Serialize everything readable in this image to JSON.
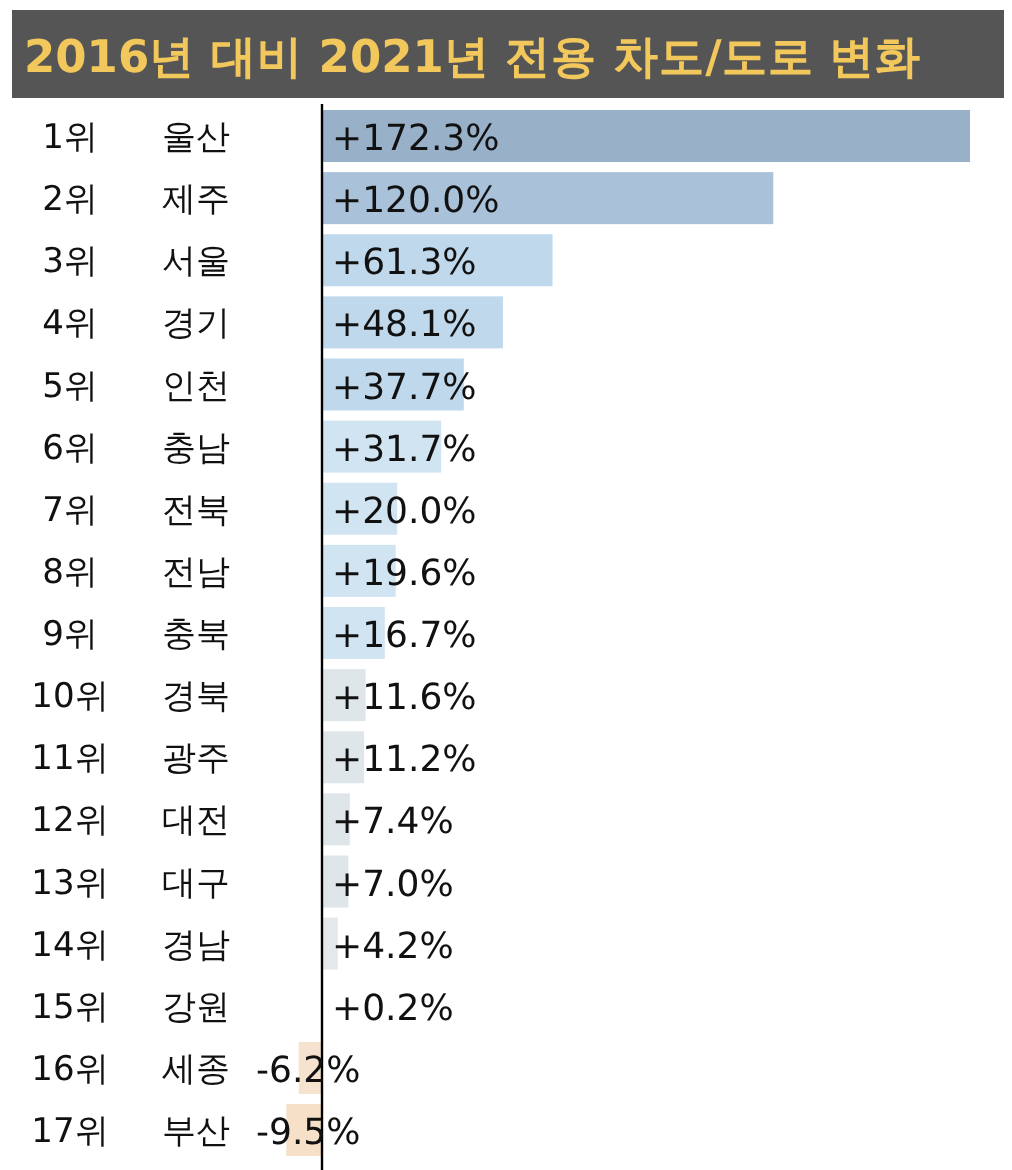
{
  "chart_data": {
    "type": "bar",
    "orientation": "horizontal",
    "title": "2016년 대비 2021년 전용 차도/도로 변화",
    "categories": [
      "울산",
      "제주",
      "서울",
      "경기",
      "인천",
      "충남",
      "전북",
      "전남",
      "충북",
      "경북",
      "광주",
      "대전",
      "대구",
      "경남",
      "강원",
      "세종",
      "부산"
    ],
    "annotations": [
      "1위",
      "2위",
      "3위",
      "4위",
      "5위",
      "6위",
      "7위",
      "8위",
      "9위",
      "10위",
      "11위",
      "12위",
      "13위",
      "14위",
      "15위",
      "16위",
      "17위"
    ],
    "values": [
      172.3,
      120.0,
      61.3,
      48.1,
      37.7,
      31.7,
      20.0,
      19.6,
      16.7,
      11.6,
      11.2,
      7.4,
      7.0,
      4.2,
      0.2,
      -6.2,
      -9.5
    ],
    "value_labels": [
      "+172.3%",
      "+120.0%",
      "+61.3%",
      "+48.1%",
      "+37.7%",
      "+31.7%",
      "+20.0%",
      "+19.6%",
      "+16.7%",
      "+11.6%",
      "+11.2%",
      "+7.4%",
      "+7.0%",
      "+4.2%",
      "+0.2%",
      "-6.2%",
      "-9.5%"
    ],
    "colors": [
      "#98b1c9",
      "#a9c1d9",
      "#bfd8ec",
      "#bfd8ec",
      "#bfd8ec",
      "#d0e4f1",
      "#d0e4f1",
      "#d0e4f1",
      "#d0e4f1",
      "#dfe6ea",
      "#dfe6ea",
      "#dfe6ea",
      "#dfe6ea",
      "#e4e8ea",
      "#e8eaec",
      "#f6e3cf",
      "#f6e0c8"
    ]
  }
}
